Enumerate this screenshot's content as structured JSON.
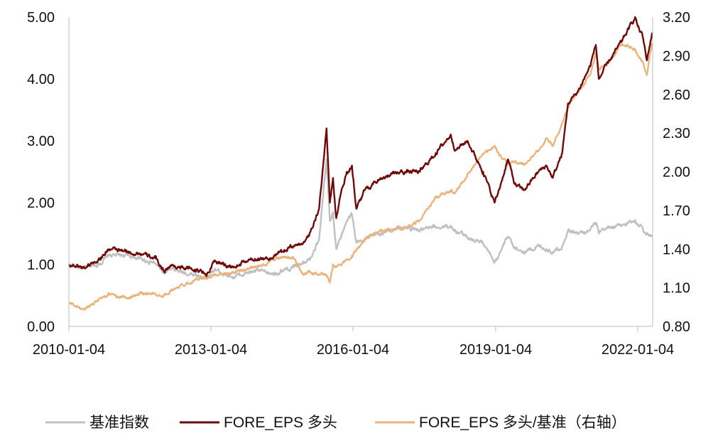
{
  "chart_data": {
    "type": "line",
    "x_ticks": [
      "2010-01-04",
      "2013-01-04",
      "2016-01-04",
      "2019-01-04",
      "2022-01-04"
    ],
    "x_range": [
      "2010-01-04",
      "2022-04-30"
    ],
    "y_left": {
      "ticks": [
        "0.00",
        "1.00",
        "2.00",
        "3.00",
        "4.00",
        "5.00"
      ],
      "range": [
        0,
        5
      ]
    },
    "y_right": {
      "ticks": [
        "0.80",
        "1.10",
        "1.40",
        "1.70",
        "2.00",
        "2.30",
        "2.60",
        "2.90",
        "3.20"
      ],
      "range": [
        0.8,
        3.2
      ]
    },
    "grid": false,
    "legend_position": "bottom",
    "series": [
      {
        "name": "基准指数",
        "axis": "left",
        "color": "#c0c0c0",
        "points": [
          [
            "2010-01-04",
            1.0
          ],
          [
            "2010-05-01",
            0.94
          ],
          [
            "2010-09-01",
            1.02
          ],
          [
            "2010-11-10",
            1.15
          ],
          [
            "2011-04-01",
            1.15
          ],
          [
            "2011-07-01",
            1.1
          ],
          [
            "2011-11-01",
            1.02
          ],
          [
            "2012-01-05",
            0.86
          ],
          [
            "2012-03-01",
            0.92
          ],
          [
            "2012-06-01",
            0.87
          ],
          [
            "2012-09-01",
            0.84
          ],
          [
            "2012-12-04",
            0.78
          ],
          [
            "2013-02-05",
            0.92
          ],
          [
            "2013-06-25",
            0.8
          ],
          [
            "2013-10-01",
            0.86
          ],
          [
            "2014-01-01",
            0.9
          ],
          [
            "2014-04-01",
            0.85
          ],
          [
            "2014-07-01",
            0.88
          ],
          [
            "2014-10-01",
            0.95
          ],
          [
            "2014-12-15",
            1.05
          ],
          [
            "2015-02-01",
            1.1
          ],
          [
            "2015-04-15",
            1.4
          ],
          [
            "2015-06-12",
            2.7
          ],
          [
            "2015-07-08",
            1.7
          ],
          [
            "2015-08-01",
            1.85
          ],
          [
            "2015-08-26",
            1.25
          ],
          [
            "2015-09-20",
            1.4
          ],
          [
            "2015-11-15",
            1.7
          ],
          [
            "2015-12-25",
            1.8
          ],
          [
            "2016-01-28",
            1.35
          ],
          [
            "2016-04-01",
            1.42
          ],
          [
            "2016-08-01",
            1.5
          ],
          [
            "2017-01-01",
            1.6
          ],
          [
            "2017-06-01",
            1.55
          ],
          [
            "2017-10-01",
            1.6
          ],
          [
            "2018-01-25",
            1.62
          ],
          [
            "2018-03-01",
            1.55
          ],
          [
            "2018-06-01",
            1.45
          ],
          [
            "2018-10-01",
            1.35
          ],
          [
            "2018-12-28",
            1.05
          ],
          [
            "2019-01-15",
            1.1
          ],
          [
            "2019-04-10",
            1.45
          ],
          [
            "2019-06-01",
            1.28
          ],
          [
            "2019-08-10",
            1.2
          ],
          [
            "2019-12-01",
            1.3
          ],
          [
            "2020-02-01",
            1.25
          ],
          [
            "2020-03-20",
            1.2
          ],
          [
            "2020-06-01",
            1.3
          ],
          [
            "2020-07-15",
            1.55
          ],
          [
            "2020-10-01",
            1.5
          ],
          [
            "2021-01-01",
            1.55
          ],
          [
            "2021-02-15",
            1.68
          ],
          [
            "2021-03-10",
            1.5
          ],
          [
            "2021-06-01",
            1.6
          ],
          [
            "2021-09-01",
            1.62
          ],
          [
            "2021-12-15",
            1.72
          ],
          [
            "2022-01-04",
            1.65
          ],
          [
            "2022-02-10",
            1.6
          ],
          [
            "2022-03-15",
            1.5
          ],
          [
            "2022-04-25",
            1.45
          ]
        ]
      },
      {
        "name": "FORE_EPS 多头",
        "axis": "left",
        "color": "#6e0a0a",
        "points": [
          [
            "2010-01-04",
            1.0
          ],
          [
            "2010-05-01",
            0.95
          ],
          [
            "2010-09-01",
            1.1
          ],
          [
            "2010-11-10",
            1.25
          ],
          [
            "2011-04-01",
            1.2
          ],
          [
            "2011-07-01",
            1.18
          ],
          [
            "2011-11-01",
            1.1
          ],
          [
            "2012-01-05",
            0.9
          ],
          [
            "2012-03-01",
            0.98
          ],
          [
            "2012-06-01",
            0.95
          ],
          [
            "2012-09-01",
            0.92
          ],
          [
            "2012-12-04",
            0.85
          ],
          [
            "2013-02-05",
            1.05
          ],
          [
            "2013-06-25",
            0.95
          ],
          [
            "2013-10-01",
            1.05
          ],
          [
            "2014-01-01",
            1.1
          ],
          [
            "2014-04-01",
            1.1
          ],
          [
            "2014-07-01",
            1.2
          ],
          [
            "2014-10-01",
            1.3
          ],
          [
            "2014-12-15",
            1.35
          ],
          [
            "2015-02-01",
            1.5
          ],
          [
            "2015-04-15",
            1.9
          ],
          [
            "2015-06-12",
            3.2
          ],
          [
            "2015-07-08",
            2.0
          ],
          [
            "2015-08-01",
            2.4
          ],
          [
            "2015-08-26",
            1.75
          ],
          [
            "2015-09-20",
            2.05
          ],
          [
            "2015-11-15",
            2.5
          ],
          [
            "2015-12-25",
            2.6
          ],
          [
            "2016-01-28",
            1.9
          ],
          [
            "2016-04-01",
            2.2
          ],
          [
            "2016-08-01",
            2.4
          ],
          [
            "2017-01-01",
            2.5
          ],
          [
            "2017-06-01",
            2.5
          ],
          [
            "2017-10-01",
            2.8
          ],
          [
            "2018-01-25",
            3.1
          ],
          [
            "2018-03-01",
            2.85
          ],
          [
            "2018-06-01",
            3.0
          ],
          [
            "2018-10-01",
            2.5
          ],
          [
            "2018-12-28",
            2.0
          ],
          [
            "2019-01-15",
            2.1
          ],
          [
            "2019-04-10",
            2.7
          ],
          [
            "2019-06-01",
            2.3
          ],
          [
            "2019-08-10",
            2.2
          ],
          [
            "2019-12-01",
            2.5
          ],
          [
            "2020-02-01",
            2.6
          ],
          [
            "2020-03-20",
            2.4
          ],
          [
            "2020-06-01",
            2.8
          ],
          [
            "2020-07-15",
            3.6
          ],
          [
            "2020-10-01",
            3.8
          ],
          [
            "2021-01-01",
            4.2
          ],
          [
            "2021-02-15",
            4.55
          ],
          [
            "2021-03-10",
            4.0
          ],
          [
            "2021-06-01",
            4.3
          ],
          [
            "2021-09-01",
            4.6
          ],
          [
            "2021-12-15",
            5.0
          ],
          [
            "2022-01-04",
            4.85
          ],
          [
            "2022-02-10",
            4.7
          ],
          [
            "2022-03-15",
            4.3
          ],
          [
            "2022-04-25",
            4.75
          ]
        ]
      },
      {
        "name": "FORE_EPS 多头/基准（右轴）",
        "axis": "right",
        "color": "#eab47e",
        "points": [
          [
            "2010-01-04",
            0.98
          ],
          [
            "2010-05-01",
            0.93
          ],
          [
            "2010-09-01",
            1.02
          ],
          [
            "2010-11-10",
            1.05
          ],
          [
            "2011-04-01",
            1.02
          ],
          [
            "2011-07-01",
            1.06
          ],
          [
            "2011-11-01",
            1.05
          ],
          [
            "2012-01-05",
            1.04
          ],
          [
            "2012-03-01",
            1.08
          ],
          [
            "2012-06-01",
            1.12
          ],
          [
            "2012-09-01",
            1.16
          ],
          [
            "2012-12-04",
            1.18
          ],
          [
            "2013-02-05",
            1.2
          ],
          [
            "2013-06-25",
            1.22
          ],
          [
            "2013-10-01",
            1.24
          ],
          [
            "2014-01-01",
            1.26
          ],
          [
            "2014-04-01",
            1.3
          ],
          [
            "2014-07-01",
            1.34
          ],
          [
            "2014-10-01",
            1.33
          ],
          [
            "2014-12-15",
            1.2
          ],
          [
            "2015-02-01",
            1.22
          ],
          [
            "2015-04-15",
            1.2
          ],
          [
            "2015-06-12",
            1.2
          ],
          [
            "2015-07-08",
            1.14
          ],
          [
            "2015-08-01",
            1.28
          ],
          [
            "2015-08-26",
            1.26
          ],
          [
            "2015-09-20",
            1.28
          ],
          [
            "2015-11-15",
            1.32
          ],
          [
            "2015-12-25",
            1.35
          ],
          [
            "2016-01-28",
            1.4
          ],
          [
            "2016-04-01",
            1.48
          ],
          [
            "2016-08-01",
            1.54
          ],
          [
            "2017-01-01",
            1.55
          ],
          [
            "2017-06-01",
            1.62
          ],
          [
            "2017-10-01",
            1.8
          ],
          [
            "2018-01-25",
            1.85
          ],
          [
            "2018-03-01",
            1.84
          ],
          [
            "2018-06-01",
            1.98
          ],
          [
            "2018-10-01",
            2.14
          ],
          [
            "2018-12-28",
            2.2
          ],
          [
            "2019-01-15",
            2.16
          ],
          [
            "2019-04-10",
            2.05
          ],
          [
            "2019-06-01",
            2.08
          ],
          [
            "2019-08-10",
            2.05
          ],
          [
            "2019-12-01",
            2.16
          ],
          [
            "2020-02-01",
            2.26
          ],
          [
            "2020-03-20",
            2.2
          ],
          [
            "2020-06-01",
            2.38
          ],
          [
            "2020-07-15",
            2.5
          ],
          [
            "2020-10-01",
            2.62
          ],
          [
            "2021-01-01",
            2.75
          ],
          [
            "2021-02-15",
            2.92
          ],
          [
            "2021-03-10",
            2.8
          ],
          [
            "2021-06-01",
            2.85
          ],
          [
            "2021-09-01",
            3.0
          ],
          [
            "2021-12-15",
            2.95
          ],
          [
            "2022-01-04",
            2.9
          ],
          [
            "2022-02-10",
            2.85
          ],
          [
            "2022-03-15",
            2.75
          ],
          [
            "2022-04-25",
            3.0
          ]
        ]
      }
    ]
  }
}
